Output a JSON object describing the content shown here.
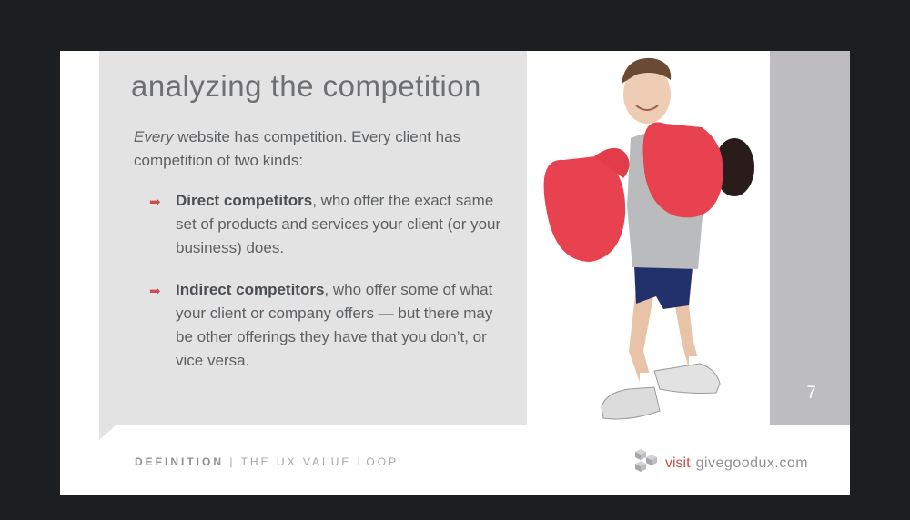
{
  "slide": {
    "title": "analyzing the competition",
    "intro_em": "Every",
    "intro_rest": " website has competition. Every client has competition of two kinds:",
    "bullets": [
      {
        "bold": "Direct competitors",
        "text": ", who offer the exact same set of products and services your client (or your business) does."
      },
      {
        "bold": "Indirect competitors",
        "text": ", who offer some of what your client or company offers — but there may be other offerings they have that you don’t, or vice versa."
      }
    ],
    "page_number": "7"
  },
  "footer": {
    "section": "DEFINITION",
    "separator": "|",
    "book": "THE UX VALUE LOOP",
    "visit": "visit",
    "domain": "givegoodux.com"
  },
  "colors": {
    "accent": "#c9504c",
    "panel": "#e3e3e3",
    "side_bar": "#bdbcbf",
    "background": "#1c1f21"
  },
  "icons": {
    "bullet": "right-arrow-icon",
    "logo": "cube-logo-icon"
  }
}
